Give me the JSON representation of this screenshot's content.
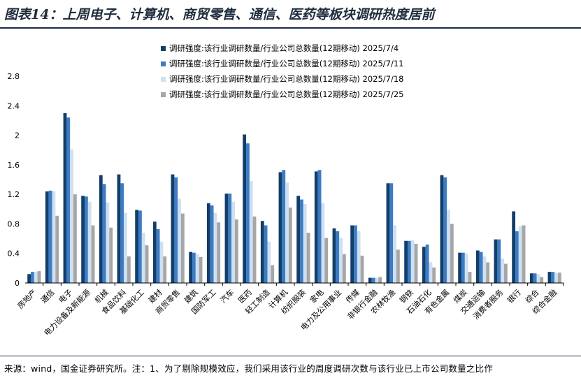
{
  "title": "图表14：上周电子、计算机、商贸零售、通信、医药等板块调研热度居前",
  "source": "来源：wind，国金证券研究所。注：1、为了剔除规模效应，我们采用该行业的周度调研次数与该行业已上市公司数量之比作",
  "chart_data": {
    "type": "bar",
    "ylim": [
      0,
      2.8
    ],
    "yticks": [
      "0",
      "0.4",
      "0.8",
      "1.2",
      "1.6",
      "2",
      "2.4",
      "2.8"
    ],
    "legend_position": "top",
    "categories": [
      "房地产",
      "通信",
      "电子",
      "电力设备及新能源",
      "机械",
      "食品饮料",
      "基础化工",
      "建材",
      "商贸零售",
      "建筑",
      "国防军工",
      "汽车",
      "医药",
      "轻工制造",
      "计算机",
      "纺织服装",
      "家电",
      "电力及公用事业",
      "传媒",
      "非银行金融",
      "农林牧渔",
      "钢铁",
      "石油石化",
      "有色金属",
      "煤炭",
      "交通运输",
      "消费者服务",
      "银行",
      "综合",
      "综合金融"
    ],
    "series": [
      {
        "name": "调研强度:该行业调研数量/行业公司总数量(12期移动) 2025/7/4",
        "color": "#123e69",
        "values": [
          0.12,
          1.24,
          2.3,
          1.18,
          1.46,
          1.47,
          0.99,
          0.83,
          1.47,
          0.42,
          1.08,
          1.21,
          2.01,
          0.84,
          1.5,
          1.18,
          1.51,
          0.74,
          0.78,
          0.07,
          1.35,
          0.57,
          0.49,
          1.46,
          0.41,
          0.44,
          0.59,
          0.97,
          0.13,
          0.15
        ]
      },
      {
        "name": "调研强度:该行业调研数量/行业公司总数量(12期移动) 2025/7/11",
        "color": "#3c7cc4",
        "values": [
          0.15,
          1.25,
          2.24,
          1.17,
          1.34,
          1.35,
          0.98,
          0.73,
          1.43,
          0.41,
          1.05,
          1.21,
          1.89,
          0.78,
          1.53,
          1.13,
          1.53,
          0.7,
          0.78,
          0.07,
          1.35,
          0.57,
          0.52,
          1.43,
          0.41,
          0.42,
          0.59,
          0.7,
          0.13,
          0.15
        ]
      },
      {
        "name": "调研强度:该行业调研数量/行业公司总数量(12期移动) 2025/7/18",
        "color": "#cfe0f1",
        "values": [
          0.15,
          1.24,
          1.81,
          1.1,
          1.09,
          0.95,
          0.68,
          0.56,
          1.14,
          0.39,
          0.95,
          1.1,
          1.38,
          0.56,
          1.36,
          1.07,
          1.08,
          0.61,
          0.7,
          0.07,
          0.78,
          0.58,
          0.28,
          0.99,
          0.4,
          0.36,
          0.33,
          0.77,
          0.12,
          0.14
        ]
      },
      {
        "name": "调研强度:该行业调研数量/行业公司总数量(12期移动) 2025/7/25",
        "color": "#a6a6a6",
        "values": [
          0.16,
          0.91,
          1.2,
          0.78,
          0.75,
          0.36,
          0.51,
          0.36,
          0.94,
          0.35,
          0.82,
          0.86,
          0.9,
          0.24,
          1.02,
          0.68,
          0.61,
          0.39,
          0.37,
          0.08,
          0.45,
          0.53,
          0.21,
          0.8,
          0.15,
          0.28,
          0.26,
          0.78,
          0.08,
          0.14
        ]
      }
    ]
  }
}
